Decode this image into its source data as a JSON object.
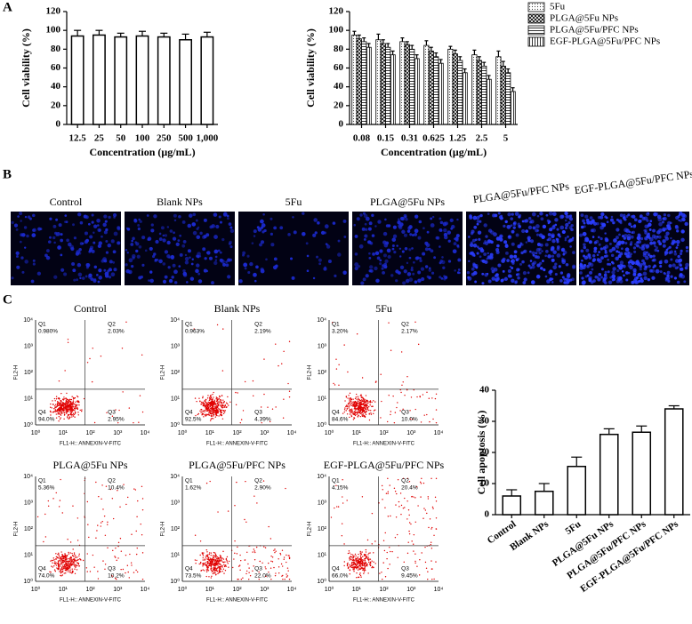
{
  "panel_labels": [
    "A",
    "B",
    "C"
  ],
  "chart_data": [
    {
      "type": "bar",
      "ylabel": "Cell viability (%)",
      "xlabel": "Concentration (μg/mL)",
      "categories": [
        "12.5",
        "25",
        "50",
        "100",
        "250",
        "500",
        "1,000"
      ],
      "values": [
        94,
        95,
        93,
        94,
        93,
        90,
        93
      ],
      "errors": [
        6,
        5,
        4,
        5,
        4,
        6,
        5
      ],
      "ylim": [
        0,
        120
      ],
      "yticks": [
        0,
        20,
        40,
        60,
        80,
        100,
        120
      ]
    },
    {
      "type": "grouped-bar",
      "ylabel": "Cell viability (%)",
      "xlabel": "Concentration (μg/mL)",
      "categories": [
        "0.08",
        "0.15",
        "0.31",
        "0.625",
        "1.25",
        "2.5",
        "5"
      ],
      "series": [
        {
          "name": "5Fu",
          "hatch": "dots",
          "values": [
            95,
            90,
            88,
            84,
            80,
            74,
            72
          ],
          "errors": [
            4,
            6,
            4,
            5,
            3,
            5,
            6
          ]
        },
        {
          "name": "PLGA@5Fu NPs",
          "hatch": "cross",
          "values": [
            91,
            86,
            85,
            78,
            75,
            68,
            62
          ],
          "errors": [
            4,
            4,
            3,
            4,
            4,
            4,
            5
          ]
        },
        {
          "name": "PLGA@5Fu/PFC NPs",
          "hatch": "horizontal",
          "values": [
            88,
            82,
            80,
            72,
            68,
            62,
            55
          ],
          "errors": [
            4,
            4,
            4,
            4,
            4,
            4,
            4
          ]
        },
        {
          "name": "EGF-PLGA@5Fu/PFC NPs",
          "hatch": "vertical",
          "values": [
            82,
            74,
            70,
            65,
            55,
            48,
            35
          ],
          "errors": [
            4,
            4,
            4,
            4,
            4,
            4,
            4
          ]
        }
      ],
      "ylim": [
        0,
        120
      ],
      "yticks": [
        0,
        20,
        40,
        60,
        80,
        100,
        120
      ],
      "legend": "top-right"
    },
    {
      "type": "bar",
      "ylabel": "Cell apoptosis (%)",
      "categories": [
        "Control",
        "Blank NPs",
        "5Fu",
        "PLGA@5Fu NPs",
        "PLGA@5Fu/PFC NPs",
        "EGF-PLGA@5Fu/PFC NPs"
      ],
      "values": [
        6,
        7.5,
        15.5,
        25.8,
        26.5,
        34
      ],
      "errors": [
        2,
        2.5,
        3,
        1.8,
        2,
        1
      ],
      "ylim": [
        0,
        40
      ],
      "yticks": [
        0,
        10,
        20,
        30,
        40
      ],
      "rotate_labels": true
    }
  ],
  "fluorescence": {
    "labels": [
      "Control",
      "Blank NPs",
      "5Fu",
      "PLGA@5Fu NPs",
      "PLGA@5Fu/PFC NPs",
      "EGF-PLGA@5Fu/PFC NPs"
    ]
  },
  "flow_cytometry": {
    "x_label": "FL1-H:: ANNEXIN-V-FITC",
    "y_label": "FL2-H",
    "ticks": [
      "10⁰",
      "10¹",
      "10²",
      "10³",
      "10⁴"
    ],
    "plots": [
      {
        "title": "Control",
        "quadrants": [
          {
            "name": "Q1",
            "value": "0.980%"
          },
          {
            "name": "Q2",
            "value": "2.03%"
          },
          {
            "name": "Q3",
            "value": "2.95%"
          },
          {
            "name": "Q4",
            "value": "94.0%"
          }
        ]
      },
      {
        "title": "Blank NPs",
        "quadrants": [
          {
            "name": "Q1",
            "value": "0.963%"
          },
          {
            "name": "Q2",
            "value": "2.19%"
          },
          {
            "name": "Q3",
            "value": "4.39%"
          },
          {
            "name": "Q4",
            "value": "92.5%"
          }
        ]
      },
      {
        "title": "5Fu",
        "quadrants": [
          {
            "name": "Q1",
            "value": "3.20%"
          },
          {
            "name": "Q2",
            "value": "2.17%"
          },
          {
            "name": "Q3",
            "value": "10.0%"
          },
          {
            "name": "Q4",
            "value": "84.6%"
          }
        ]
      },
      {
        "title": "PLGA@5Fu NPs",
        "quadrants": [
          {
            "name": "Q1",
            "value": "5.36%"
          },
          {
            "name": "Q2",
            "value": "10.4%"
          },
          {
            "name": "Q3",
            "value": "10.2%"
          },
          {
            "name": "Q4",
            "value": "74.0%"
          }
        ]
      },
      {
        "title": "PLGA@5Fu/PFC NPs",
        "quadrants": [
          {
            "name": "Q1",
            "value": "1.62%"
          },
          {
            "name": "Q2",
            "value": "2.90%"
          },
          {
            "name": "Q3",
            "value": "22.0%"
          },
          {
            "name": "Q4",
            "value": "73.5%"
          }
        ]
      },
      {
        "title": "EGF-PLGA@5Fu/PFC NPs",
        "quadrants": [
          {
            "name": "Q1",
            "value": "4.15%"
          },
          {
            "name": "Q2",
            "value": "20.4%"
          },
          {
            "name": "Q3",
            "value": "9.45%"
          },
          {
            "name": "Q4",
            "value": "66.0%"
          }
        ]
      }
    ]
  }
}
